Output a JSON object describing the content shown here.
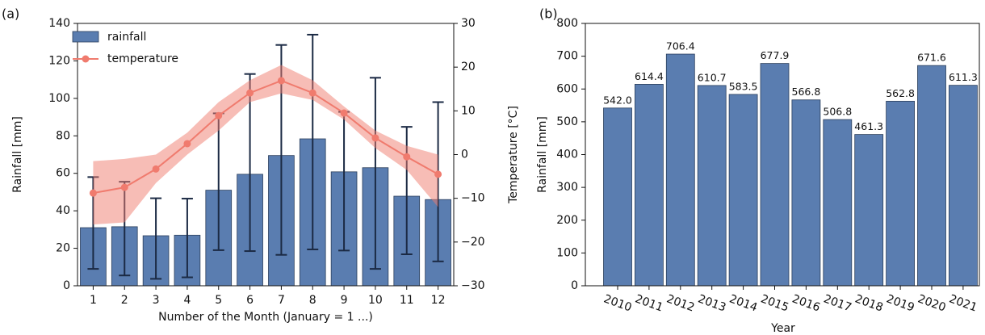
{
  "chart_data": [
    {
      "type": "combo",
      "panel_label": "(a)",
      "categories": [
        1,
        2,
        3,
        4,
        5,
        6,
        7,
        8,
        9,
        10,
        11,
        12
      ],
      "x_label": "Number of the Month (January = 1 ...)",
      "y_label": "Rainfall [mm]",
      "y2_label": "Temperature [°C]",
      "ylim": [
        0,
        140
      ],
      "yticks": [
        0,
        20,
        40,
        60,
        80,
        100,
        120,
        140
      ],
      "y2lim": [
        -30,
        30
      ],
      "y2ticks": [
        {
          "value": -30,
          "label": "−30"
        },
        {
          "value": -20,
          "label": "−20"
        },
        {
          "value": -10,
          "label": "−10"
        },
        0,
        10,
        20,
        30
      ],
      "legend": "upper left",
      "series": [
        {
          "name": "rainfall",
          "type": "bar",
          "color": "#5a7db0",
          "values": [
            31,
            31.5,
            26.7,
            27,
            51,
            59.5,
            69.5,
            78.4,
            60.8,
            63,
            47.8,
            46
          ],
          "error_lower": [
            22,
            26,
            23,
            22.5,
            32,
            41,
            53,
            59,
            42,
            54,
            31,
            33
          ],
          "error_upper": [
            27,
            24,
            20,
            19.5,
            41,
            53.5,
            59,
            55.6,
            32,
            48,
            37,
            52
          ]
        },
        {
          "name": "temperature",
          "type": "line",
          "axis": "y2",
          "color": "#f07b6e",
          "values": [
            -8.8,
            -7.5,
            -3.3,
            2.5,
            8.9,
            14.1,
            16.9,
            14.1,
            9.5,
            3.8,
            -0.5,
            -4.5
          ],
          "band_lower": [
            -16,
            -15.5,
            -6.5,
            0,
            5.5,
            12,
            14,
            12.5,
            8,
            1.5,
            -3.5,
            -12
          ],
          "band_upper": [
            -1.5,
            -1,
            0,
            5,
            12,
            17,
            20.5,
            17,
            11,
            5.5,
            2,
            0
          ]
        }
      ]
    },
    {
      "type": "bar",
      "panel_label": "(b)",
      "categories": [
        2010,
        2011,
        2012,
        2013,
        2014,
        2015,
        2016,
        2017,
        2018,
        2019,
        2020,
        2021
      ],
      "x_label": "Year",
      "y_label": "Rainfall [mm]",
      "ylim": [
        0,
        800
      ],
      "yticks": [
        0,
        100,
        200,
        300,
        400,
        500,
        600,
        700,
        800
      ],
      "color": "#5a7db0",
      "values": [
        542.0,
        614.4,
        706.4,
        610.7,
        583.5,
        677.9,
        566.8,
        506.8,
        461.3,
        562.8,
        671.6,
        611.3
      ],
      "value_labels": [
        "542.0",
        "614.4",
        "706.4",
        "610.7",
        "583.5",
        "677.9",
        "566.8",
        "506.8",
        "461.3",
        "562.8",
        "671.6",
        "611.3"
      ]
    }
  ]
}
